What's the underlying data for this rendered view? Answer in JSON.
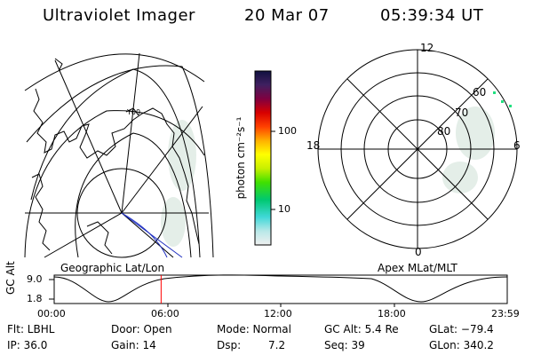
{
  "header": {
    "instrument": "Ultraviolet Imager",
    "date": "20 Mar 07",
    "time": "05:39:34 UT"
  },
  "panels": {
    "left_label": "Geographic Lat/Lon",
    "right_label": "Apex MLat/MLT"
  },
  "polar_plot": {
    "mlt_labels": {
      "top": "12",
      "left": "18",
      "right": "6",
      "bottom": "0"
    },
    "lat_labels": [
      "60",
      "70",
      "80"
    ]
  },
  "colorbar": {
    "unit_label": "photon cm⁻²s⁻¹",
    "ticks": [
      "100",
      "10"
    ]
  },
  "geo_map": {
    "coast_label": "Y00"
  },
  "altitude_plot": {
    "axis_label": "GC Alt",
    "y_ticks": [
      "9.0",
      "1.8"
    ],
    "x_ticks": [
      "00:00",
      "06:00",
      "12:00",
      "18:00",
      "23:59"
    ],
    "current_time_fraction": 0.236,
    "marker_color": "#ff0000"
  },
  "info": {
    "flt": "Flt: LBHL",
    "door": "Door: Open",
    "mode": "Mode: Normal",
    "gc_alt": "GC Alt: 5.4 Re",
    "glat": "GLat: −79.4",
    "ip": "IP: 36.0",
    "gain": "Gain: 14",
    "dsp_label": "Dsp:",
    "dsp_value": "7.2",
    "seq": "Seq: 39",
    "glon": "GLon: 340.2"
  }
}
